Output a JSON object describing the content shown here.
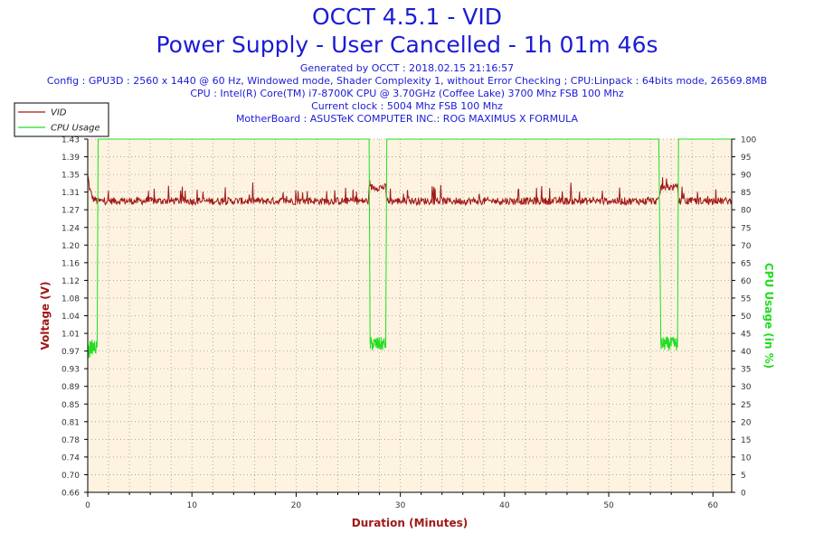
{
  "header": {
    "title": "OCCT 4.5.1 - VID",
    "subtitle": "Power Supply - User Cancelled - 1h 01m 46s",
    "info_lines": [
      "Generated by OCCT : 2018.02.15 21:16:57",
      "Config : GPU3D : 2560 x 1440 @ 60 Hz, Windowed mode, Shader Complexity 1, without Error Checking ; CPU:Linpack : 64bits mode, 26569.8MB",
      "CPU : Intel(R) Core(TM) i7-8700K CPU @ 3.70GHz (Coffee Lake) 3700 Mhz FSB 100 Mhz",
      "Current clock : 5004 Mhz FSB 100 Mhz",
      "MotherBoard : ASUSTeK COMPUTER INC.: ROG MAXIMUS X FORMULA"
    ]
  },
  "colors": {
    "title": "#1b1bd6",
    "vid": "#a01818",
    "cpu": "#22dd22",
    "plot_bg": "#fdf3e0",
    "grid": "#999999"
  },
  "chart_data": {
    "type": "line",
    "xlabel": "Duration (Minutes)",
    "ylabel": "Voltage (V)",
    "y2label": "CPU Usage (in %)",
    "xlim": [
      0,
      61.8
    ],
    "ylim": [
      0.66,
      1.43
    ],
    "y2lim": [
      0,
      100
    ],
    "x_ticks": [
      0,
      10,
      20,
      30,
      40,
      50,
      60
    ],
    "y_ticks": [
      "1.43",
      "1.39",
      "1.35",
      "1.31",
      "1.27",
      "1.24",
      "1.20",
      "1.16",
      "1.12",
      "1.08",
      "1.04",
      "1.01",
      "0.97",
      "0.93",
      "0.89",
      "0.85",
      "0.81",
      "0.78",
      "0.74",
      "0.70",
      "0.66"
    ],
    "y2_ticks": [
      100,
      95,
      90,
      85,
      80,
      75,
      70,
      65,
      60,
      55,
      50,
      45,
      40,
      35,
      30,
      25,
      20,
      15,
      10,
      5,
      0
    ],
    "legend_position": "top-left",
    "grid": true,
    "series": [
      {
        "name": "VID",
        "x": [
          0,
          0.2,
          0.5,
          1.0,
          5,
          10,
          15,
          20,
          25,
          27.0,
          27.1,
          28.6,
          28.7,
          30,
          35,
          40,
          45,
          50,
          54.8,
          55.0,
          56.6,
          56.7,
          60,
          61.8
        ],
        "y": [
          1.35,
          1.32,
          1.3,
          1.295,
          1.295,
          1.295,
          1.295,
          1.295,
          1.295,
          1.295,
          1.325,
          1.325,
          1.295,
          1.295,
          1.295,
          1.295,
          1.295,
          1.295,
          1.295,
          1.325,
          1.325,
          1.295,
          1.295,
          1.295
        ]
      },
      {
        "name": "CPU Usage",
        "x": [
          0,
          0.2,
          0.9,
          1.0,
          27.0,
          27.1,
          28.6,
          28.7,
          54.8,
          55.0,
          56.6,
          56.7,
          61.8
        ],
        "y": [
          40,
          41,
          42,
          100,
          100,
          42,
          41,
          100,
          100,
          42,
          41,
          100,
          100
        ]
      }
    ]
  }
}
